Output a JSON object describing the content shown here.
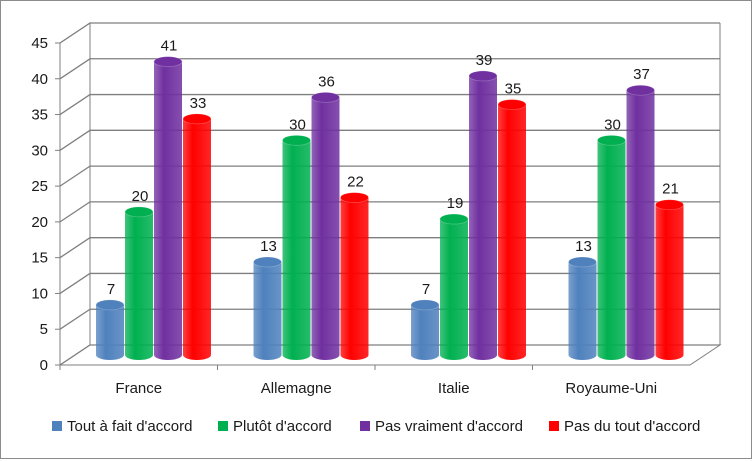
{
  "chart_data": {
    "type": "bar",
    "style": "3d-cylinder",
    "categories": [
      "France",
      "Allemagne",
      "Italie",
      "Royaume-Uni"
    ],
    "series": [
      {
        "name": "Tout à fait d'accord",
        "color": "#4f81bd",
        "values": [
          7,
          13,
          7,
          13
        ]
      },
      {
        "name": "Plutôt d'accord",
        "color": "#00b050",
        "values": [
          20,
          30,
          19,
          30
        ]
      },
      {
        "name": "Pas vraiment d'accord",
        "color": "#7030a0",
        "values": [
          41,
          36,
          39,
          37
        ]
      },
      {
        "name": "Pas du tout d'accord",
        "color": "#ff0000",
        "values": [
          33,
          22,
          35,
          21
        ]
      }
    ],
    "ylim": [
      0,
      45
    ],
    "yticks": [
      "0",
      "5",
      "10",
      "15",
      "20",
      "25",
      "30",
      "35",
      "40",
      "45"
    ],
    "grid": true,
    "legend_position": "bottom",
    "data_labels": true
  }
}
